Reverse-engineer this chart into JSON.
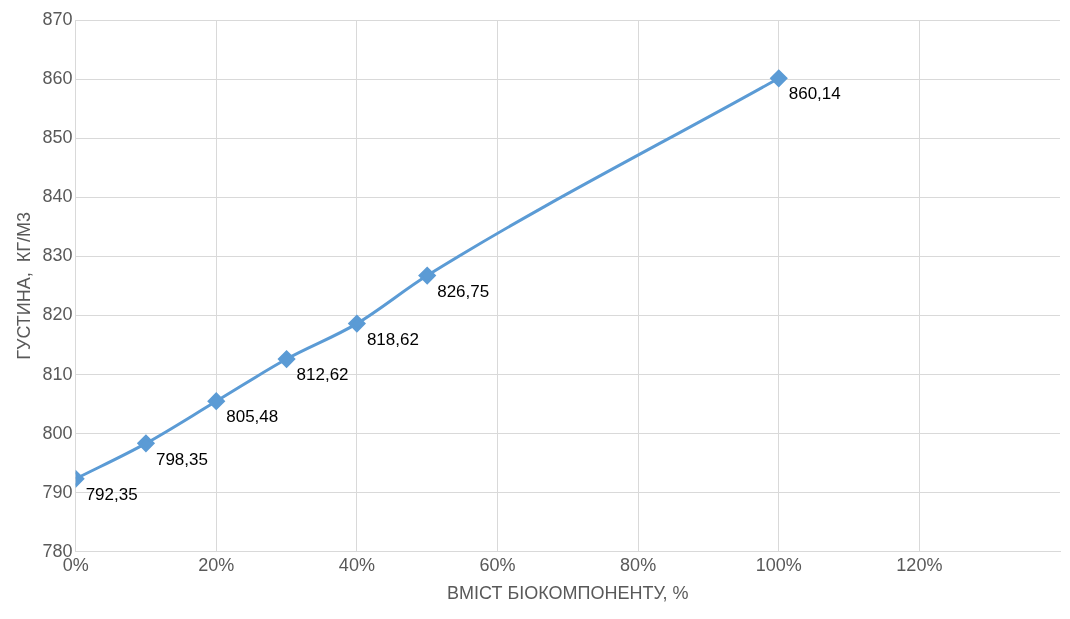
{
  "chart_data": {
    "type": "line",
    "xlabel": "ВМІСТ БІОКОМПОНЕНТУ, %",
    "ylabel": "ГУСТИНА,  КГ/М3",
    "x": [
      0,
      10,
      20,
      30,
      40,
      50,
      100
    ],
    "series": [
      {
        "color": "#5b9bd5",
        "values": [
          792.35,
          798.35,
          805.48,
          812.62,
          818.62,
          826.75,
          860.14
        ],
        "value_labels": [
          "792,35",
          "798,35",
          "805,48",
          "812,62",
          "818,62",
          "826,75",
          "860,14"
        ]
      }
    ],
    "xlim": [
      0,
      140
    ],
    "xticks": [
      {
        "value": 0,
        "label": "0%"
      },
      {
        "value": 20,
        "label": "20%"
      },
      {
        "value": 40,
        "label": "40%"
      },
      {
        "value": 60,
        "label": "60%"
      },
      {
        "value": 80,
        "label": "80%"
      },
      {
        "value": 100,
        "label": "100%"
      },
      {
        "value": 120,
        "label": "120%"
      }
    ],
    "ylim": [
      780,
      870
    ],
    "yticks": [
      780,
      790,
      800,
      810,
      820,
      830,
      840,
      850,
      860,
      870
    ],
    "grid": true,
    "legend": false,
    "marker": "diamond",
    "line_style": "solid"
  }
}
